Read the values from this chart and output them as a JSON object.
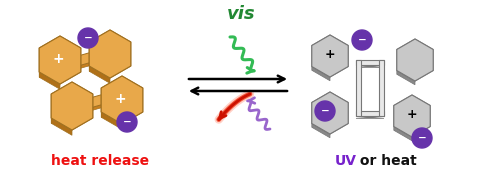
{
  "bg_color": "#ffffff",
  "hex_color_orange_top": "#E8A84A",
  "hex_color_orange_bot": "#C88020",
  "hex_color_orange_side": "#B07018",
  "hex_color_gray_top": "#C8C8C8",
  "hex_color_gray_bot": "#989898",
  "hex_color_gray_side": "#888888",
  "hex_edge_orange": "#A07020",
  "hex_edge_gray": "#777777",
  "ion_color": "#6633AA",
  "vis_color": "#228833",
  "heat_release_color": "#EE1111",
  "uv_color": "#7722CC",
  "or_heat_color": "#111111",
  "vis_label": "vis",
  "heat_release_label": "heat release",
  "uv_label": "UV",
  "or_label": " or heat",
  "wavy_vis_color": "#33BB55",
  "wavy_uv_color": "#9966CC",
  "wavy_heat_color": "#EE2200",
  "connector_color": "#D09030",
  "central_frame_top": "#E8E8E8",
  "central_frame_side": "#999999",
  "central_frame_edge": "#777777"
}
